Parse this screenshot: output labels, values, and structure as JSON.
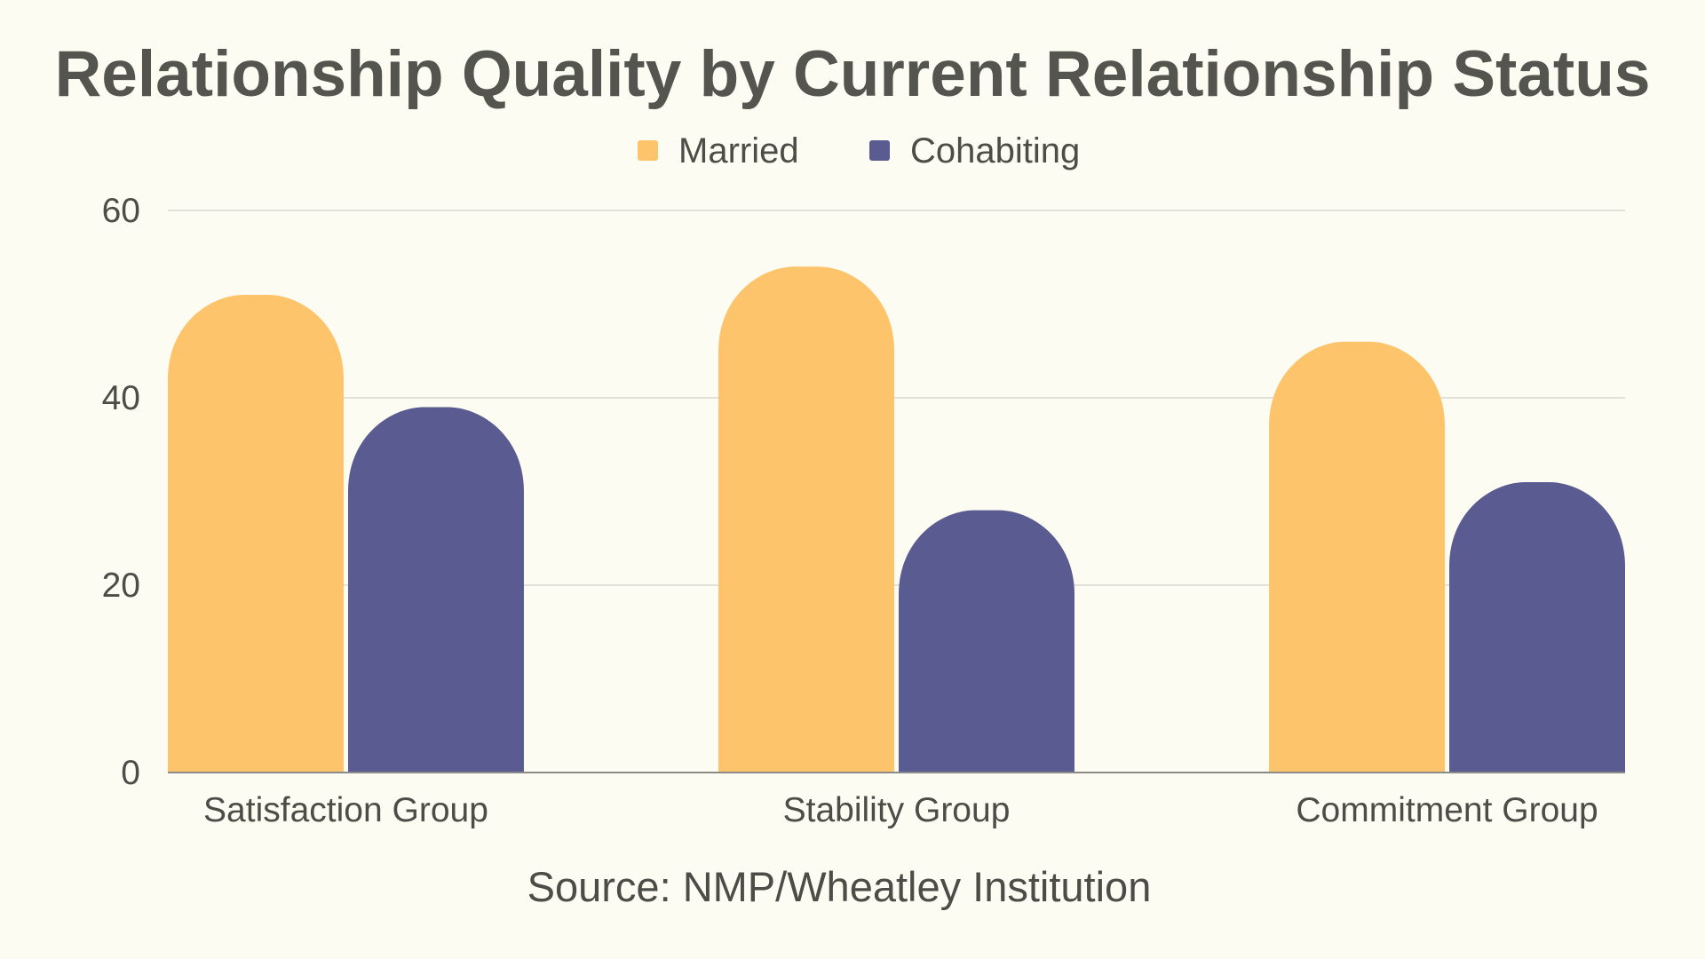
{
  "chart_data": {
    "type": "bar",
    "title": "Relationship Quality by Current Relationship Status",
    "categories": [
      "Satisfaction Group",
      "Stability Group",
      "Commitment Group"
    ],
    "series": [
      {
        "name": "Married",
        "values": [
          51,
          54,
          46
        ],
        "color": "#fdc46b"
      },
      {
        "name": "Cohabiting",
        "values": [
          39,
          28,
          31
        ],
        "color": "#5a5b90"
      }
    ],
    "ylim": [
      0,
      60
    ],
    "yticks": [
      0,
      20,
      40,
      60
    ],
    "grid": true,
    "legend": "top-center",
    "xlabel": "",
    "ylabel": "",
    "source": "Source: NMP/Wheatley Institution"
  }
}
